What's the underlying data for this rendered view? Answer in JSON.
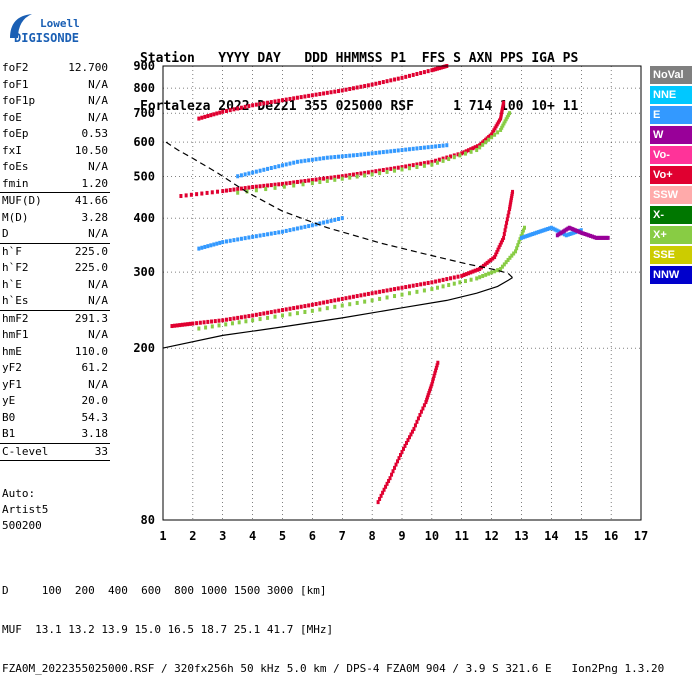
{
  "logo": {
    "line1": "Lowell",
    "line2": "DIGISONDE",
    "color": "#1a5fb4"
  },
  "header": {
    "row1": "Station   YYYY DAY   DDD HHMMSS P1  FFS S AXN PPS IGA PS",
    "row2": "Fortaleza 2022 Dez21 355 025000 RSF     1 714 100 10+ 11"
  },
  "params": [
    {
      "k": "foF2",
      "v": "12.700"
    },
    {
      "k": "foF1",
      "v": "N/A"
    },
    {
      "k": "foF1p",
      "v": "N/A"
    },
    {
      "k": "foE",
      "v": "N/A"
    },
    {
      "k": "foEp",
      "v": "0.53"
    },
    {
      "k": "fxI",
      "v": "10.50"
    },
    {
      "k": "foEs",
      "v": "N/A"
    },
    {
      "k": "fmin",
      "v": "1.20"
    },
    {
      "sep": true
    },
    {
      "k": "MUF(D)",
      "v": "41.66"
    },
    {
      "k": "M(D)",
      "v": "3.28"
    },
    {
      "k": "D",
      "v": "N/A"
    },
    {
      "sep": true
    },
    {
      "k": "h`F",
      "v": "225.0"
    },
    {
      "k": "h`F2",
      "v": "225.0"
    },
    {
      "k": "h`E",
      "v": "N/A"
    },
    {
      "k": "h`Es",
      "v": "N/A"
    },
    {
      "sep": true
    },
    {
      "k": "hmF2",
      "v": "291.3"
    },
    {
      "k": "hmF1",
      "v": "N/A"
    },
    {
      "k": "hmE",
      "v": "110.0"
    },
    {
      "k": "yF2",
      "v": "61.2"
    },
    {
      "k": "yF1",
      "v": "N/A"
    },
    {
      "k": "yE",
      "v": "20.0"
    },
    {
      "k": "B0",
      "v": "54.3"
    },
    {
      "k": "B1",
      "v": "3.18"
    },
    {
      "sep": true
    },
    {
      "k": "C-level",
      "v": "33"
    },
    {
      "sep": true
    }
  ],
  "auto": {
    "l1": "Auto:",
    "l2": "Artist5",
    "l3": "500200"
  },
  "legend": [
    {
      "label": "NoVal",
      "color": "#7f7f7f"
    },
    {
      "label": "NNE",
      "color": "#00c8ff"
    },
    {
      "label": "E",
      "color": "#3399ff"
    },
    {
      "label": "W",
      "color": "#990099"
    },
    {
      "label": "Vo-",
      "color": "#ff3399"
    },
    {
      "label": "Vo+",
      "color": "#e00030"
    },
    {
      "label": "SSW",
      "color": "#ffaaaa"
    },
    {
      "label": "X-",
      "color": "#007700"
    },
    {
      "label": "X+",
      "color": "#88cc44"
    },
    {
      "label": "SSE",
      "color": "#cccc00"
    },
    {
      "label": "NNW",
      "color": "#0000cc"
    }
  ],
  "footer": {
    "l1": "D     100  200  400  600  800 1000 1500 3000 [km]",
    "l2": "MUF  13.1 13.2 13.9 15.0 16.5 18.7 25.1 41.7 [MHz]",
    "l3": "FZA0M_2022355025000.RSF / 320fx256h 50 kHz 5.0 km / DPS-4 FZA0M 904 / 3.9 S 321.6 E   Ion2Png 1.3.20"
  },
  "chart_data": {
    "type": "scatter",
    "xlim": [
      1,
      17
    ],
    "ylim": [
      80,
      900
    ],
    "x_ticks": [
      1,
      2,
      3,
      4,
      5,
      6,
      7,
      8,
      9,
      10,
      11,
      12,
      13,
      14,
      15,
      16,
      17
    ],
    "y_ticks": [
      80,
      200,
      300,
      400,
      500,
      600,
      700,
      800,
      900
    ],
    "grid": true,
    "y_scale": "log",
    "series": [
      {
        "color": "#e00030",
        "points": [
          [
            1.3,
            225
          ],
          [
            2,
            228
          ],
          [
            3,
            232
          ],
          [
            4,
            238
          ],
          [
            5,
            245
          ],
          [
            6,
            252
          ],
          [
            7,
            260
          ],
          [
            8,
            268
          ],
          [
            9,
            276
          ],
          [
            10,
            284
          ],
          [
            11,
            294
          ],
          [
            11.6,
            305
          ],
          [
            12.1,
            325
          ],
          [
            12.4,
            360
          ],
          [
            12.6,
            420
          ],
          [
            12.7,
            460
          ]
        ]
      },
      {
        "color": "#88cc44",
        "points": [
          [
            2.2,
            222
          ],
          [
            4,
            232
          ],
          [
            6,
            244
          ],
          [
            8,
            258
          ],
          [
            10,
            274
          ],
          [
            11.5,
            290
          ],
          [
            12.3,
            305
          ],
          [
            12.8,
            335
          ],
          [
            13.1,
            380
          ]
        ]
      },
      {
        "color": "#e00030",
        "points": [
          [
            1.6,
            450
          ],
          [
            3,
            462
          ],
          [
            4,
            472
          ],
          [
            5,
            480
          ],
          [
            6,
            490
          ],
          [
            7,
            500
          ],
          [
            8,
            512
          ],
          [
            9,
            525
          ],
          [
            10,
            540
          ],
          [
            11,
            565
          ],
          [
            11.6,
            590
          ],
          [
            12,
            625
          ],
          [
            12.3,
            680
          ],
          [
            12.4,
            740
          ]
        ]
      },
      {
        "color": "#88cc44",
        "points": [
          [
            3.5,
            458
          ],
          [
            6,
            482
          ],
          [
            8,
            505
          ],
          [
            10,
            532
          ],
          [
            11.5,
            575
          ],
          [
            12.3,
            640
          ],
          [
            12.6,
            700
          ]
        ]
      },
      {
        "color": "#e00030",
        "points": [
          [
            2.2,
            680
          ],
          [
            3,
            705
          ],
          [
            4,
            730
          ],
          [
            5,
            750
          ],
          [
            6,
            770
          ],
          [
            7,
            790
          ],
          [
            8,
            815
          ],
          [
            9,
            845
          ],
          [
            10,
            880
          ],
          [
            10.5,
            900
          ]
        ]
      },
      {
        "color": "#3399ff",
        "points": [
          [
            2.2,
            340
          ],
          [
            3,
            352
          ],
          [
            4,
            362
          ],
          [
            5,
            372
          ],
          [
            6,
            385
          ],
          [
            7,
            400
          ]
        ]
      },
      {
        "color": "#3399ff",
        "points": [
          [
            13,
            360
          ],
          [
            13.5,
            370
          ],
          [
            14,
            380
          ],
          [
            14.5,
            365
          ],
          [
            15,
            375
          ]
        ]
      },
      {
        "color": "#990099",
        "points": [
          [
            14.2,
            365
          ],
          [
            14.6,
            380
          ],
          [
            15,
            370
          ],
          [
            15.5,
            360
          ],
          [
            15.9,
            360
          ]
        ]
      },
      {
        "color": "#3399ff",
        "points": [
          [
            3.5,
            500
          ],
          [
            4.5,
            520
          ],
          [
            5.5,
            540
          ],
          [
            6.5,
            552
          ],
          [
            7.5,
            560
          ],
          [
            8.5,
            570
          ],
          [
            9.5,
            580
          ],
          [
            10.5,
            590
          ]
        ]
      },
      {
        "color": "#e00030",
        "points": [
          [
            8.2,
            88
          ],
          [
            8.6,
            100
          ],
          [
            9,
            115
          ],
          [
            9.4,
            130
          ],
          [
            9.8,
            150
          ],
          [
            10,
            165
          ],
          [
            10.2,
            185
          ]
        ]
      }
    ],
    "profile": [
      [
        1,
        200
      ],
      [
        3,
        214
      ],
      [
        5,
        224
      ],
      [
        7,
        235
      ],
      [
        9,
        248
      ],
      [
        10.5,
        258
      ],
      [
        11.5,
        268
      ],
      [
        12.2,
        278
      ],
      [
        12.55,
        287
      ],
      [
        12.7,
        291.3
      ],
      [
        12.55,
        298
      ],
      [
        12.1,
        304
      ],
      [
        11.2,
        313
      ],
      [
        9.8,
        330
      ],
      [
        8.3,
        350
      ],
      [
        6.5,
        380
      ],
      [
        5,
        415
      ],
      [
        3.8,
        460
      ],
      [
        2.8,
        510
      ],
      [
        2,
        550
      ],
      [
        1.5,
        575
      ],
      [
        1.1,
        600
      ]
    ]
  }
}
